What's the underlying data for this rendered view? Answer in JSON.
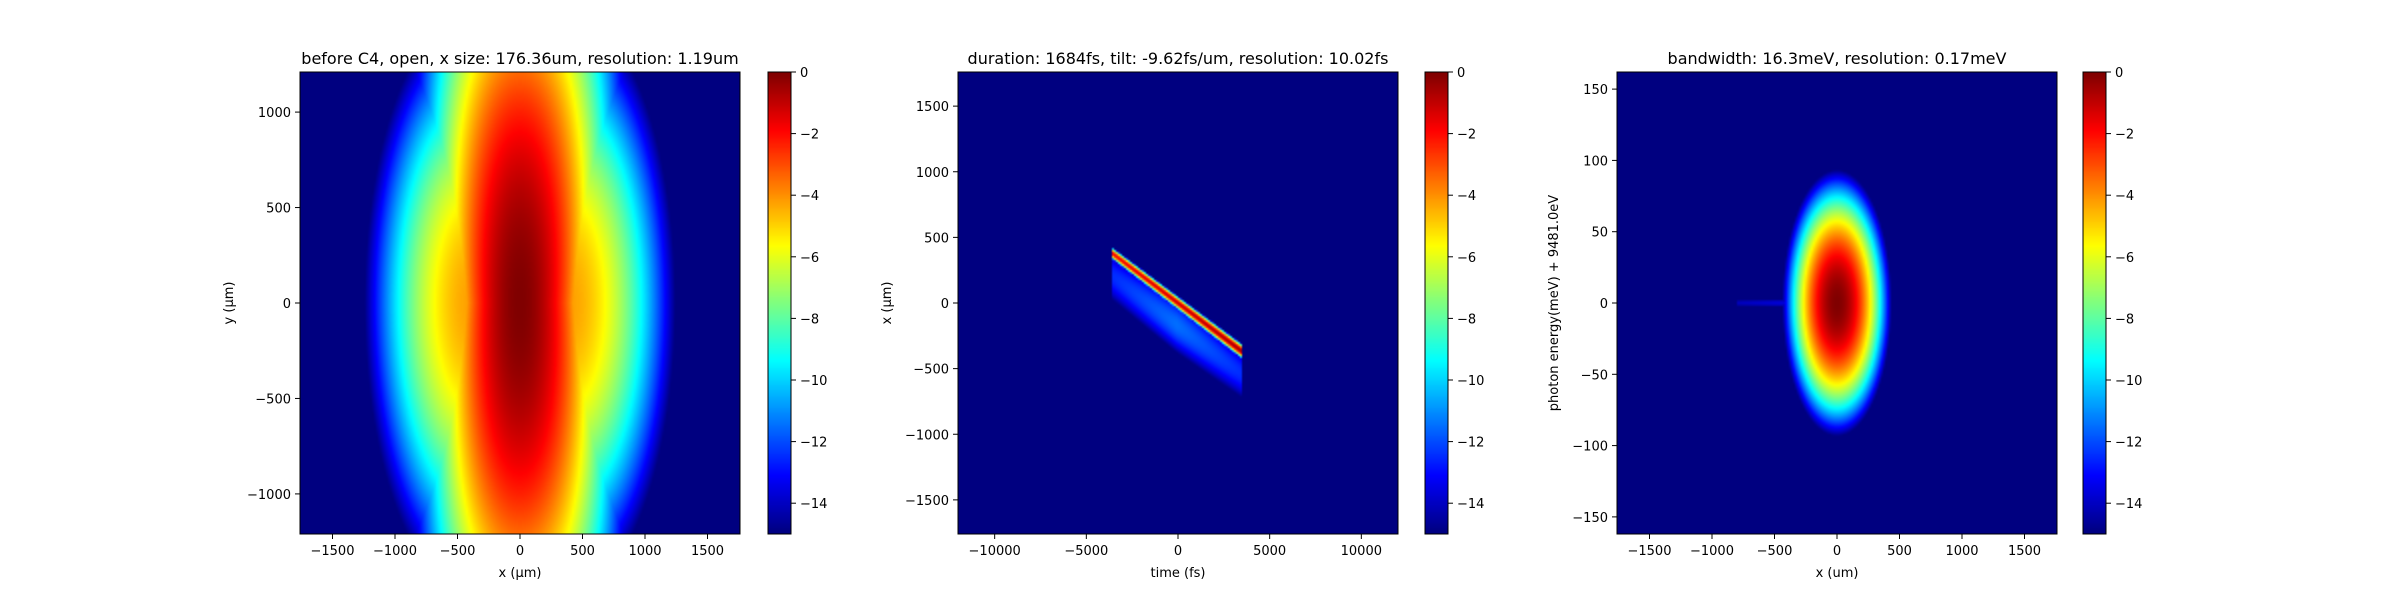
{
  "chart_data": [
    {
      "type": "heatmap",
      "title": "before C4, open, x size: 176.36um, resolution: 1.19um",
      "xlabel": "x (μm)",
      "ylabel": "y (μm)",
      "xlim": [
        -1760,
        1760
      ],
      "ylim": [
        -1210,
        1210
      ],
      "xticks": [
        -1500,
        -1000,
        -500,
        0,
        500,
        1000,
        1500
      ],
      "yticks": [
        -1000,
        -500,
        0,
        500,
        1000
      ],
      "xtick_labels": [
        "−1500",
        "−1000",
        "−500",
        "0",
        "500",
        "1000",
        "1500"
      ],
      "ytick_labels": [
        "−1000",
        "−500",
        "0",
        "500",
        "1000"
      ],
      "colorbar": {
        "range": [
          -15,
          0
        ],
        "ticks": [
          0,
          -2,
          -4,
          -6,
          -8,
          -10,
          -12,
          -14
        ],
        "tick_labels": [
          "0",
          "−2",
          "−4",
          "−6",
          "−8",
          "−10",
          "−12",
          "−14"
        ],
        "colormap": "jet"
      },
      "model": {
        "kind": "beam",
        "x_center": 0,
        "x_sigma": 176,
        "y_sigma": 800,
        "peak_y": 0
      }
    },
    {
      "type": "heatmap",
      "title": "duration: 1684fs, tilt: -9.62fs/um, resolution: 10.02fs",
      "xlabel": "time (fs)",
      "ylabel": "x (μm)",
      "xlim": [
        -12000,
        12000
      ],
      "ylim": [
        -1760,
        1760
      ],
      "xticks": [
        -10000,
        -5000,
        0,
        5000,
        10000
      ],
      "yticks": [
        -1500,
        -1000,
        -500,
        0,
        500,
        1000,
        1500
      ],
      "xtick_labels": [
        "−10000",
        "−5000",
        "0",
        "5000",
        "10000"
      ],
      "ytick_labels": [
        "−1500",
        "−1000",
        "−500",
        "0",
        "500",
        "1000",
        "1500"
      ],
      "colorbar": {
        "range": [
          -15,
          0
        ],
        "ticks": [
          0,
          -2,
          -4,
          -6,
          -8,
          -10,
          -12,
          -14
        ],
        "tick_labels": [
          "0",
          "−2",
          "−4",
          "−6",
          "−8",
          "−10",
          "−12",
          "−14"
        ],
        "colormap": "jet"
      },
      "model": {
        "kind": "tilt",
        "t_start": -3600,
        "x_start": 380,
        "t_end": 3500,
        "x_end": -370
      }
    },
    {
      "type": "heatmap",
      "title": "bandwidth: 16.3meV, resolution: 0.17meV",
      "xlabel": "x (um)",
      "ylabel": "photon energy(meV) + 9481.0eV",
      "xlim": [
        -1760,
        1760
      ],
      "ylim": [
        -162,
        162
      ],
      "xticks": [
        -1500,
        -1000,
        -500,
        0,
        500,
        1000,
        1500
      ],
      "yticks": [
        -150,
        -100,
        -50,
        0,
        50,
        100,
        150
      ],
      "xtick_labels": [
        "−1500",
        "−1000",
        "−500",
        "0",
        "500",
        "1000",
        "1500"
      ],
      "ytick_labels": [
        "−150",
        "−100",
        "−50",
        "0",
        "50",
        "100",
        "150"
      ],
      "colorbar": {
        "range": [
          -15,
          0
        ],
        "ticks": [
          0,
          -2,
          -4,
          -6,
          -8,
          -10,
          -12,
          -14
        ],
        "tick_labels": [
          "0",
          "−2",
          "−4",
          "−6",
          "−8",
          "−10",
          "−12",
          "−14"
        ],
        "colormap": "jet"
      },
      "model": {
        "kind": "spot",
        "x_sigma": 110,
        "y_sigma": 23.5
      }
    }
  ]
}
